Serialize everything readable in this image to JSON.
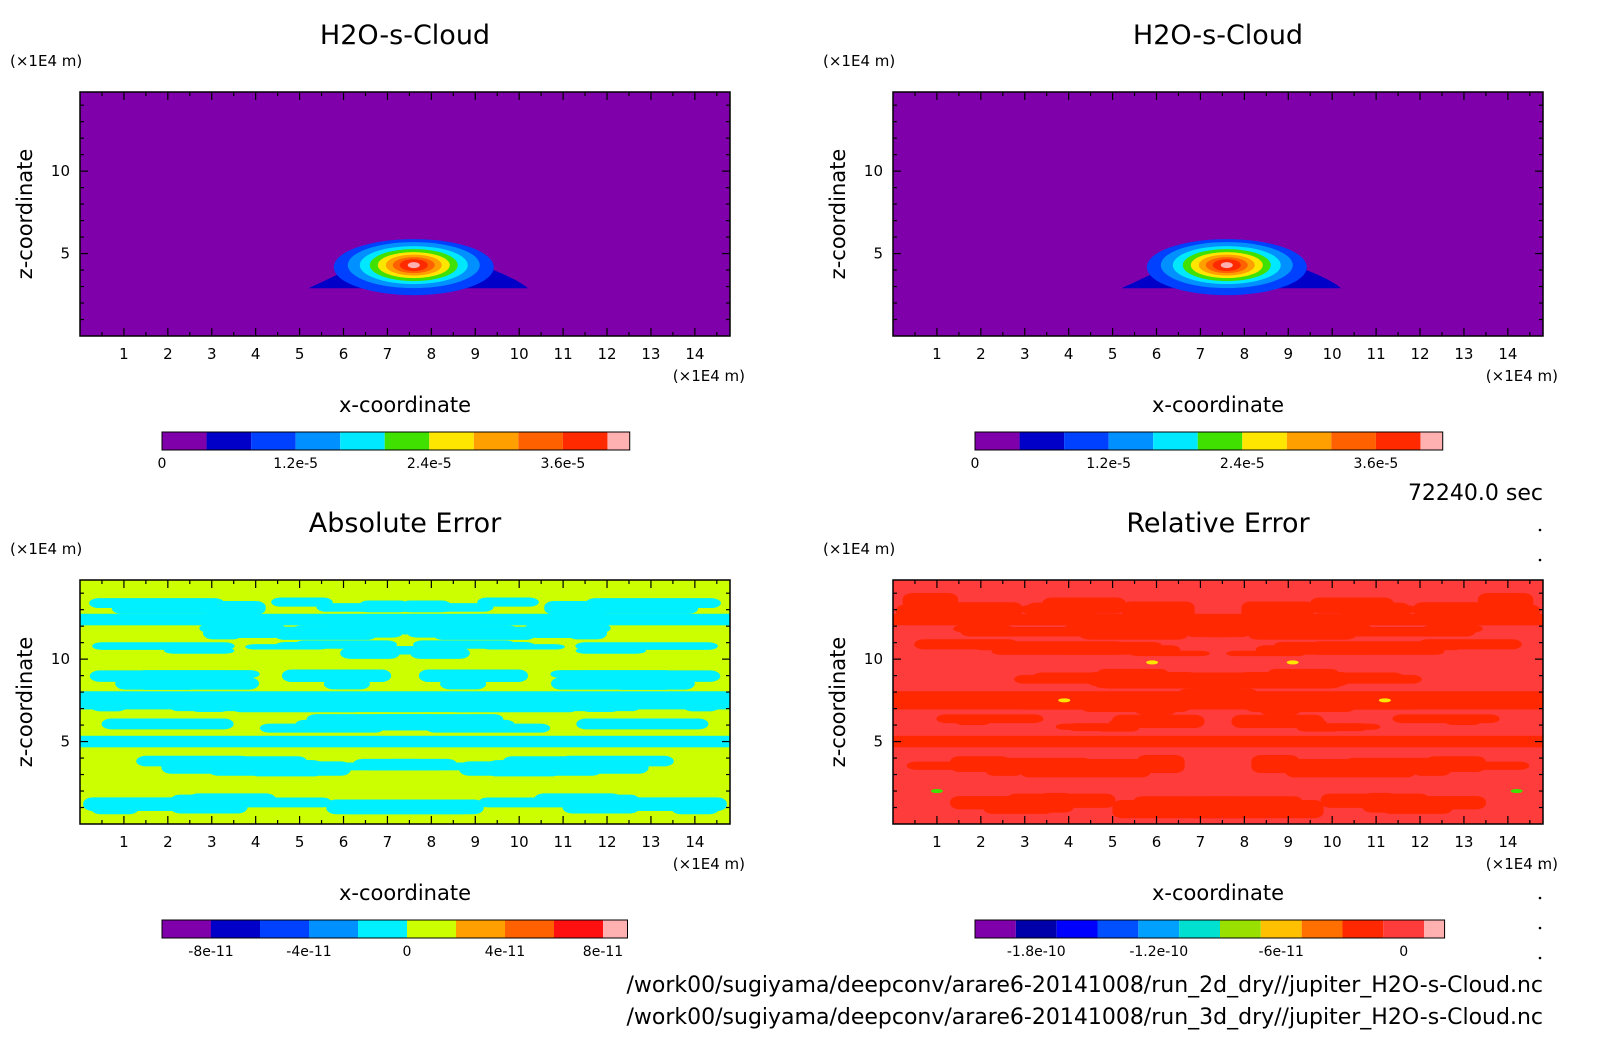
{
  "panels": [
    {
      "title": "H2O-s-Cloud",
      "type": "field",
      "x_label": "x-coordinate",
      "y_label": "z-coordinate",
      "x_unit": "(×1E4 m)",
      "y_unit": "(×1E4 m)",
      "colorbar_ticks": [
        "0",
        "1.2e-5",
        "2.4e-5",
        "3.6e-5"
      ]
    },
    {
      "title": "H2O-s-Cloud",
      "type": "field",
      "x_label": "x-coordinate",
      "y_label": "z-coordinate",
      "x_unit": "(×1E4 m)",
      "y_unit": "(×1E4 m)",
      "colorbar_ticks": [
        "0",
        "1.2e-5",
        "2.4e-5",
        "3.6e-5"
      ]
    },
    {
      "title": "Absolute Error",
      "type": "abs_error",
      "x_label": "x-coordinate",
      "y_label": "z-coordinate",
      "x_unit": "(×1E4 m)",
      "y_unit": "(×1E4 m)",
      "colorbar_ticks": [
        "-8e-11",
        "-4e-11",
        "0",
        "4e-11",
        "8e-11"
      ]
    },
    {
      "title": "Relative Error",
      "type": "rel_error",
      "x_label": "x-coordinate",
      "y_label": "z-coordinate",
      "x_unit": "(×1E4 m)",
      "y_unit": "(×1E4 m)",
      "colorbar_ticks": [
        "-1.8e-10",
        "-1.2e-10",
        "-6e-11",
        "0"
      ]
    }
  ],
  "time_label": "72240.0 sec",
  "file_paths": [
    "/work00/sugiyama/deepconv/arare6-20141008/run_2d_dry//jupiter_H2O-s-Cloud.nc",
    "/work00/sugiyama/deepconv/arare6-20141008/run_3d_dry//jupiter_H2O-s-Cloud.nc"
  ],
  "chart_data": [
    {
      "type": "heatmap",
      "title": "H2O-s-Cloud",
      "xlabel": "x-coordinate",
      "ylabel": "z-coordinate",
      "x_ticks": [
        "1",
        "2",
        "3",
        "4",
        "5",
        "6",
        "7",
        "8",
        "9",
        "10",
        "11",
        "12",
        "13",
        "14"
      ],
      "y_ticks": [
        "5",
        "10"
      ],
      "xlim": [
        0,
        14.8
      ],
      "ylim": [
        0,
        14.8
      ],
      "colorbar": {
        "ticks": [
          0,
          1.2e-05,
          2.4e-05,
          3.6e-05
        ],
        "levels": [
          0,
          4e-06,
          8e-06,
          1.2e-05,
          1.6e-05,
          2e-05,
          2.4e-05,
          2.8e-05,
          3.2e-05,
          3.6e-05,
          4e-05,
          4.4e-05
        ],
        "colors": [
          "#7f00aa",
          "#0000c8",
          "#0040ff",
          "#0090ff",
          "#00e8ff",
          "#40e000",
          "#ffe600",
          "#ffa000",
          "#ff6000",
          "#ff2a00",
          "#ffb0b0"
        ]
      },
      "feature": {
        "description_values": {
          "center_x": 7.6,
          "center_z": 4.3,
          "max": 4e-05
        }
      }
    },
    {
      "type": "heatmap",
      "title": "H2O-s-Cloud",
      "xlabel": "x-coordinate",
      "ylabel": "z-coordinate",
      "x_ticks": [
        "1",
        "2",
        "3",
        "4",
        "5",
        "6",
        "7",
        "8",
        "9",
        "10",
        "11",
        "12",
        "13",
        "14"
      ],
      "y_ticks": [
        "5",
        "10"
      ],
      "xlim": [
        0,
        14.8
      ],
      "ylim": [
        0,
        14.8
      ],
      "colorbar": {
        "ticks": [
          0,
          1.2e-05,
          2.4e-05,
          3.6e-05
        ],
        "colors": [
          "#7f00aa",
          "#0000c8",
          "#0040ff",
          "#0090ff",
          "#00e8ff",
          "#40e000",
          "#ffe600",
          "#ffa000",
          "#ff6000",
          "#ff2a00",
          "#ffb0b0"
        ]
      },
      "feature": {
        "description_values": {
          "center_x": 7.6,
          "center_z": 4.3,
          "max": 4e-05
        }
      }
    },
    {
      "type": "heatmap",
      "title": "Absolute Error",
      "xlabel": "x-coordinate",
      "ylabel": "z-coordinate",
      "x_ticks": [
        "1",
        "2",
        "3",
        "4",
        "5",
        "6",
        "7",
        "8",
        "9",
        "10",
        "11",
        "12",
        "13",
        "14"
      ],
      "y_ticks": [
        "5",
        "10"
      ],
      "xlim": [
        0,
        14.8
      ],
      "ylim": [
        0,
        14.8
      ],
      "colorbar": {
        "ticks": [
          -8e-11,
          -4e-11,
          0,
          4e-11,
          8e-11
        ],
        "colors": [
          "#7f00aa",
          "#0000c8",
          "#0040ff",
          "#0090ff",
          "#00f0ff",
          "#ccff00",
          "#ffa000",
          "#ff6000",
          "#ff1010",
          "#ffb0b0"
        ]
      },
      "dominant_levels": [
        "#00f0ff",
        "#ccff00"
      ]
    },
    {
      "type": "heatmap",
      "title": "Relative Error",
      "xlabel": "x-coordinate",
      "ylabel": "z-coordinate",
      "x_ticks": [
        "1",
        "2",
        "3",
        "4",
        "5",
        "6",
        "7",
        "8",
        "9",
        "10",
        "11",
        "12",
        "13",
        "14"
      ],
      "y_ticks": [
        "5",
        "10"
      ],
      "xlim": [
        0,
        14.8
      ],
      "ylim": [
        0,
        14.8
      ],
      "colorbar": {
        "ticks": [
          -1.8e-10,
          -1.2e-10,
          -6e-11,
          0
        ],
        "colors": [
          "#7f00aa",
          "#0000aa",
          "#0000ff",
          "#0050ff",
          "#00a0ff",
          "#00e0d0",
          "#99e000",
          "#ffc000",
          "#ff7000",
          "#ff2800",
          "#ff3c3c",
          "#ffb0b0"
        ]
      },
      "dominant_levels": [
        "#ff2800",
        "#ff3c3c"
      ]
    }
  ]
}
